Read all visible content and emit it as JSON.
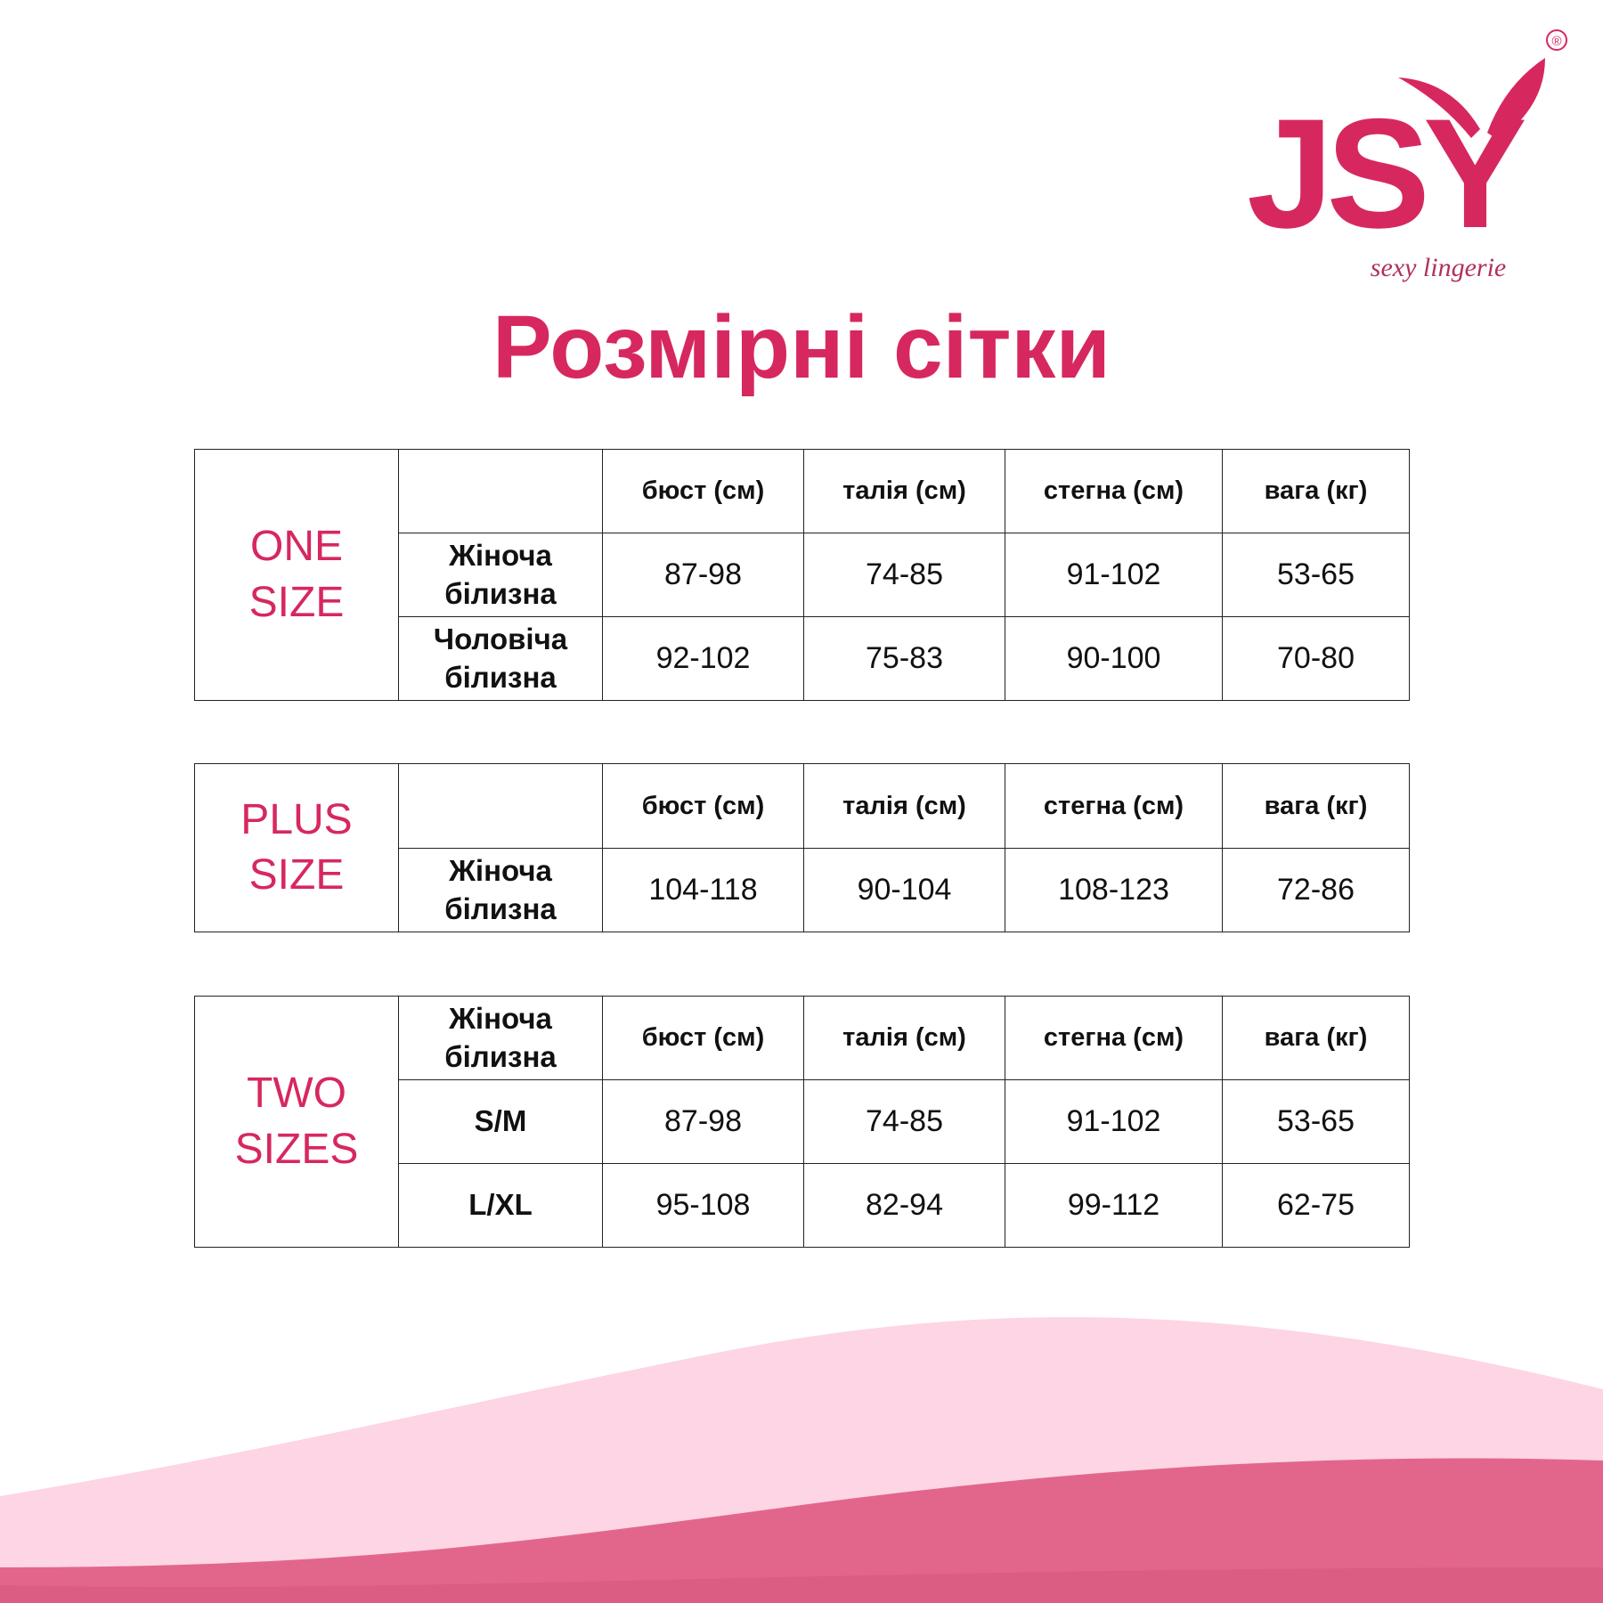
{
  "brand": {
    "name": "JSY",
    "tagline": "sexy lingerie",
    "registered_mark": "®",
    "color": "#d6285f"
  },
  "title": "Розмірні сітки",
  "tables": [
    {
      "size_label_line1": "ONE",
      "size_label_line2": "SIZE",
      "corner": "",
      "headers": [
        "бюст (см)",
        "талія (см)",
        "стегна (см)",
        "вага (кг)"
      ],
      "rows": [
        {
          "label_line1": "Жіноча",
          "label_line2": "білизна",
          "values": [
            "87-98",
            "74-85",
            "91-102",
            "53-65"
          ]
        },
        {
          "label_line1": "Чоловіча",
          "label_line2": "білизна",
          "values": [
            "92-102",
            "75-83",
            "90-100",
            "70-80"
          ]
        }
      ]
    },
    {
      "size_label_line1": "PLUS",
      "size_label_line2": "SIZE",
      "corner": "",
      "headers": [
        "бюст (см)",
        "талія (см)",
        "стегна (см)",
        "вага (кг)"
      ],
      "rows": [
        {
          "label_line1": "Жіноча",
          "label_line2": "білизна",
          "values": [
            "104-118",
            "90-104",
            "108-123",
            "72-86"
          ]
        }
      ]
    },
    {
      "size_label_line1": "TWO",
      "size_label_line2": "SIZES",
      "corner_line1": "Жіноча",
      "corner_line2": "білизна",
      "headers": [
        "бюст (см)",
        "талія (см)",
        "стегна (см)",
        "вага (кг)"
      ],
      "rows": [
        {
          "label": "S/M",
          "values": [
            "87-98",
            "74-85",
            "91-102",
            "53-65"
          ]
        },
        {
          "label": "L/XL",
          "values": [
            "95-108",
            "82-94",
            "99-112",
            "62-75"
          ]
        }
      ]
    }
  ],
  "colors": {
    "accent": "#d6285f",
    "wave_light": "#fdd5e4",
    "wave_dark": "#e2668b"
  }
}
